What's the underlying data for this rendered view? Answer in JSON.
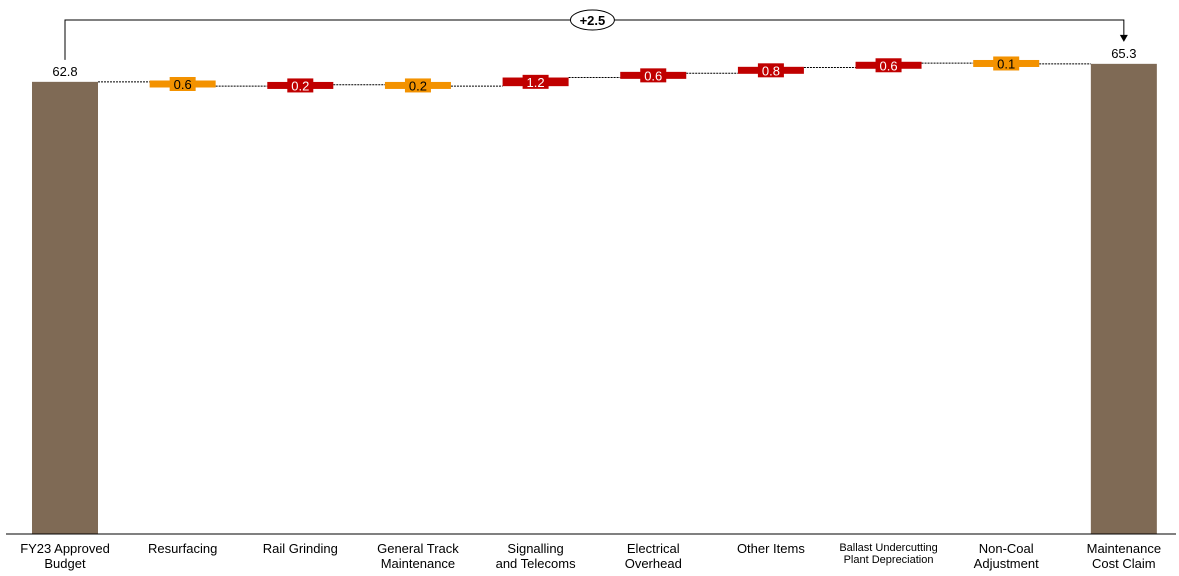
{
  "colors": {
    "total": "#7f6a55",
    "positive": "#c00000",
    "negative": "#f39200",
    "connector": "#000000"
  },
  "chart_data": {
    "type": "bar",
    "subtype": "waterfall",
    "title": "",
    "xlabel": "",
    "ylabel": "",
    "ylim": [
      0,
      66
    ],
    "grid": false,
    "legend": "none",
    "total_change_label": "+2.5",
    "items": [
      {
        "category_lines": [
          "FY23 Approved",
          "Budget"
        ],
        "kind": "total",
        "value": 62.8,
        "label": "62.8"
      },
      {
        "category_lines": [
          "Resurfacing"
        ],
        "kind": "negative",
        "value": -0.6,
        "label": "0.6"
      },
      {
        "category_lines": [
          "Rail Grinding"
        ],
        "kind": "positive",
        "value": 0.2,
        "label": "0.2"
      },
      {
        "category_lines": [
          "General Track",
          "Maintenance"
        ],
        "kind": "negative",
        "value": -0.2,
        "label": "0.2"
      },
      {
        "category_lines": [
          "Signalling",
          "and Telecoms"
        ],
        "kind": "positive",
        "value": 1.2,
        "label": "1.2"
      },
      {
        "category_lines": [
          "Electrical",
          "Overhead"
        ],
        "kind": "positive",
        "value": 0.6,
        "label": "0.6"
      },
      {
        "category_lines": [
          "Other Items"
        ],
        "kind": "positive",
        "value": 0.8,
        "label": "0.8"
      },
      {
        "category_lines": [
          "Ballast Undercutting",
          "Plant Depreciation"
        ],
        "kind": "positive",
        "value": 0.6,
        "label": "0.6",
        "small": true
      },
      {
        "category_lines": [
          "Non-Coal",
          "Adjustment"
        ],
        "kind": "negative",
        "value": -0.1,
        "label": "0.1"
      },
      {
        "category_lines": [
          "Maintenance",
          "Cost Claim"
        ],
        "kind": "total",
        "value": 65.3,
        "label": "65.3"
      }
    ]
  }
}
